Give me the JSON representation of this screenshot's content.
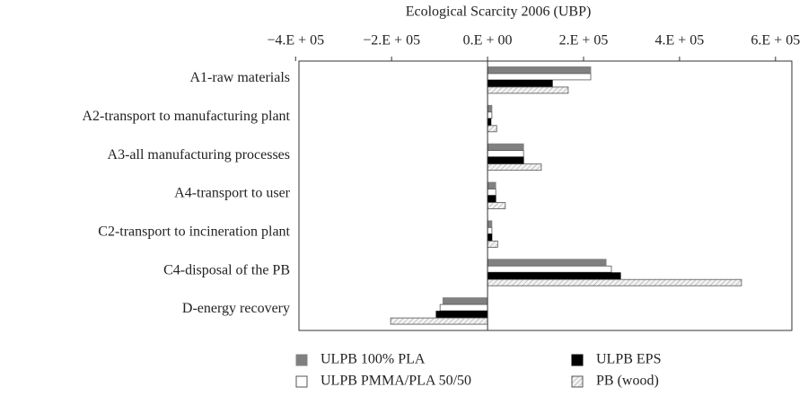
{
  "chart_data": {
    "type": "barh",
    "xlabel": "Ecological Scarcity 2006 (UBP)",
    "categories": [
      "A1-raw materials",
      "A2-transport to manufacturing plant",
      "A3-all manufacturing processes",
      "A4-transport to user",
      "C2-transport to incineration plant",
      "C4-disposal of the PB",
      "D-energy recovery"
    ],
    "series": [
      {
        "name": "ULPB 100% PLA",
        "color": "#808080",
        "values": [
          215000,
          9000,
          75000,
          17000,
          9000,
          247000,
          -93000
        ]
      },
      {
        "name": "ULPB PMMA/PLA 50/50",
        "color": "#ffffff",
        "values": [
          215000,
          9000,
          75000,
          17000,
          9000,
          258000,
          -99000
        ]
      },
      {
        "name": "ULPB EPS",
        "color": "#000000",
        "values": [
          135000,
          7000,
          75000,
          17000,
          9000,
          277000,
          -107000
        ]
      },
      {
        "name": "PB (wood)",
        "color": "#e6e6e6",
        "hatch": true,
        "values": [
          168000,
          19000,
          112000,
          37000,
          21000,
          529000,
          -202000
        ]
      }
    ],
    "xlim": [
      -393000,
      634000
    ],
    "xticks": [
      {
        "value": -400000,
        "label": "−4.E + 05"
      },
      {
        "value": -200000,
        "label": "−2.E + 05"
      },
      {
        "value": 0,
        "label": "0.E + 00"
      },
      {
        "value": 200000,
        "label": "2.E + 05"
      },
      {
        "value": 400000,
        "label": "4.E + 05"
      },
      {
        "value": 600000,
        "label": "6.E + 05"
      }
    ]
  }
}
